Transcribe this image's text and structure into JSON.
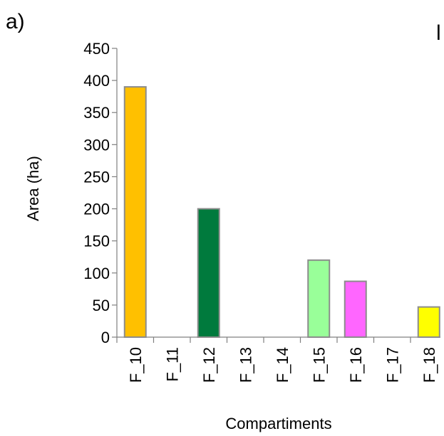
{
  "panel_label": "a)",
  "next_panel_fragment": "l",
  "chart_data": {
    "type": "bar",
    "title": "",
    "xlabel": "Compartiments",
    "ylabel": "Area (ha)",
    "ylim": [
      0,
      450
    ],
    "yticks": [
      0,
      50,
      100,
      150,
      200,
      250,
      300,
      350,
      400,
      450
    ],
    "categories": [
      "F_10",
      "F_11",
      "F_12",
      "F_13",
      "F_14",
      "F_15",
      "F_16",
      "F_17",
      "F_18"
    ],
    "values": [
      390,
      0,
      200,
      0,
      0,
      120,
      87,
      0,
      47
    ],
    "colors": [
      "#FFC000",
      "#FFFFFF",
      "#007A3D",
      "#FFFFFF",
      "#FFFFFF",
      "#99FF99",
      "#FF66FF",
      "#FFFFFF",
      "#FFFF00"
    ],
    "grid": false,
    "legend": "none"
  }
}
